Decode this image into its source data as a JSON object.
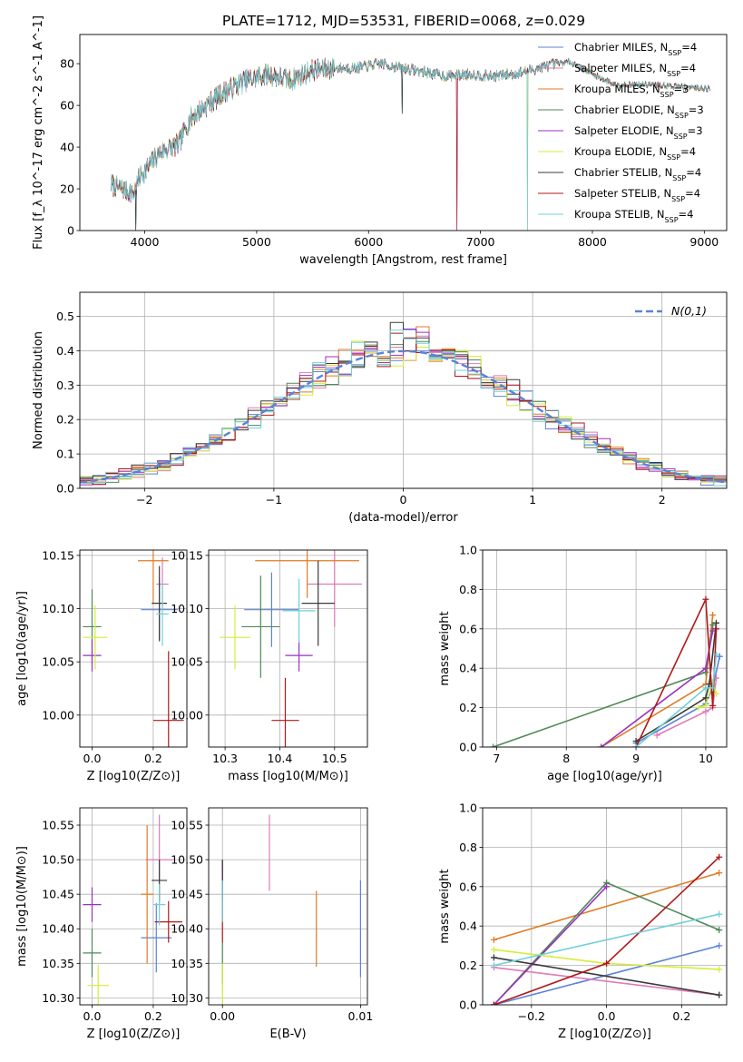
{
  "figure_title": "PLATE=1712, MJD=53531, FIBERID=0068, z=0.029",
  "models": [
    {
      "name": "Chabrier MILES, N$_{SSP}$=4",
      "lib": "Chabrier MILES, N",
      "n": "4",
      "color": "#5b83d6"
    },
    {
      "name": "Salpeter MILES, N$_{SSP}$=4",
      "lib": "Salpeter MILES, N",
      "n": "4",
      "color": "#e07ab8"
    },
    {
      "name": "Kroupa MILES, N$_{SSP}$=3",
      "lib": "Kroupa MILES, N",
      "n": "3",
      "color": "#e07b22"
    },
    {
      "name": "Chabrier ELODIE, N$_{SSP}$=3",
      "lib": "Chabrier ELODIE, N",
      "n": "3",
      "color": "#4e8a57"
    },
    {
      "name": "Salpeter ELODIE, N$_{SSP}$=3",
      "lib": "Salpeter ELODIE, N",
      "n": "3",
      "color": "#9b30c0"
    },
    {
      "name": "Kroupa ELODIE, N$_{SSP}$=4",
      "lib": "Kroupa ELODIE, N",
      "n": "4",
      "color": "#d6ec3a"
    },
    {
      "name": "Chabrier STELIB, N$_{SSP}$=4",
      "lib": "Chabrier STELIB, N",
      "n": "4",
      "color": "#3a3a3a"
    },
    {
      "name": "Salpeter STELIB, N$_{SSP}$=4",
      "lib": "Salpeter STELIB, N",
      "n": "4",
      "color": "#b01818"
    },
    {
      "name": "Kroupa STELIB, N$_{SSP}$=4",
      "lib": "Kroupa STELIB, N",
      "n": "4",
      "color": "#6fd0d8"
    }
  ],
  "nssp_sub": "SSP",
  "chart_data": [
    {
      "id": "spectrum",
      "type": "line",
      "xlabel": "wavelength [Angstrom, rest frame]",
      "ylabel": "Flux [f_λ 10^-17 erg cm^-2 s^-1 A^-1]",
      "xlim": [
        3420,
        9200
      ],
      "ylim": [
        0,
        94
      ],
      "xticks": [
        4000,
        5000,
        6000,
        7000,
        8000,
        9000
      ],
      "yticks": [
        0,
        20,
        40,
        60,
        80
      ],
      "grid": false,
      "legend": "top-right",
      "continuum_knots": [
        [
          3700,
          22
        ],
        [
          3800,
          20
        ],
        [
          3900,
          18
        ],
        [
          3960,
          26
        ],
        [
          4050,
          32
        ],
        [
          4150,
          38
        ],
        [
          4300,
          41
        ],
        [
          4400,
          53
        ],
        [
          4500,
          58
        ],
        [
          4700,
          66
        ],
        [
          4900,
          72
        ],
        [
          5100,
          75
        ],
        [
          5300,
          72
        ],
        [
          5500,
          77
        ],
        [
          5700,
          78
        ],
        [
          5900,
          78
        ],
        [
          6100,
          80
        ],
        [
          6300,
          78
        ],
        [
          6500,
          76
        ],
        [
          6700,
          74
        ],
        [
          6900,
          75
        ],
        [
          7100,
          74
        ],
        [
          7300,
          75
        ],
        [
          7600,
          79
        ],
        [
          7800,
          81
        ],
        [
          8000,
          75
        ],
        [
          8200,
          70
        ],
        [
          8500,
          70
        ],
        [
          8800,
          69
        ],
        [
          9050,
          68
        ]
      ],
      "dropouts": [
        {
          "x": 3920,
          "to": 0
        },
        {
          "x": 6790,
          "to": 0
        },
        {
          "x": 7420,
          "to": 0
        },
        {
          "x": 6300,
          "to": 56
        }
      ]
    },
    {
      "id": "residuals",
      "type": "histogram",
      "xlabel": "(data-model)/error",
      "ylabel": "Normed distribution",
      "xlim": [
        -2.5,
        2.5
      ],
      "ylim": [
        0,
        0.57
      ],
      "xticks": [
        -2,
        -1,
        0,
        1,
        2
      ],
      "yticks": [
        0.0,
        0.1,
        0.2,
        0.3,
        0.4,
        0.5
      ],
      "bin_width": 0.1,
      "grid": true,
      "legend": "top-right",
      "reference": {
        "name": "N(0,1)",
        "mean": 0,
        "sigma": 1,
        "color": "#5b83d6"
      }
    },
    {
      "id": "age_vs_Z",
      "type": "errorbar",
      "xlabel": "Z [log10(Z/Z⊙)]",
      "ylabel": "age  [log10(age/yr)]",
      "xlim": [
        -0.04,
        0.31
      ],
      "ylim": [
        9.97,
        10.155
      ],
      "xticks": [
        0.0,
        0.2
      ],
      "yticks": [
        10.0,
        10.05,
        10.1,
        10.15
      ],
      "grid": true,
      "points": [
        {
          "x": 0.22,
          "xerr": 0.06,
          "y": 10.099,
          "yerr": 0.03
        },
        {
          "x": 0.23,
          "xerr": 0.02,
          "y": 10.123,
          "yerr": 0.025
        },
        {
          "x": 0.2,
          "xerr": 0.05,
          "y": 10.145,
          "yerr": 0.04
        },
        {
          "x": 0.0,
          "xerr": 0.03,
          "y": 10.083,
          "yerr": 0.035
        },
        {
          "x": 0.0,
          "xerr": 0.03,
          "y": 10.056,
          "yerr": 0.015
        },
        {
          "x": 0.01,
          "xerr": 0.04,
          "y": 10.073,
          "yerr": 0.03
        },
        {
          "x": 0.22,
          "xerr": 0.025,
          "y": 10.105,
          "yerr": 0.035
        },
        {
          "x": 0.25,
          "xerr": 0.05,
          "y": 9.995,
          "yerr": 0.065
        },
        {
          "x": 0.23,
          "xerr": 0.02,
          "y": 10.095,
          "yerr": 0.03
        }
      ]
    },
    {
      "id": "age_vs_mass",
      "type": "errorbar",
      "xlabel": "mass [log10(M/M⊙)]",
      "ylabel": "",
      "xlim": [
        10.27,
        10.56
      ],
      "ylim": [
        9.97,
        10.155
      ],
      "xticks": [
        10.3,
        10.4,
        10.5
      ],
      "yticks": [
        10.0,
        10.05,
        10.1,
        10.15
      ],
      "grid": true,
      "points": [
        {
          "x": 10.385,
          "xerr": 0.05,
          "y": 10.099,
          "yerr": 0.035
        },
        {
          "x": 10.5,
          "xerr": 0.05,
          "y": 10.123,
          "yerr": 0.04
        },
        {
          "x": 10.45,
          "xerr": 0.095,
          "y": 10.145,
          "yerr": 0.035
        },
        {
          "x": 10.365,
          "xerr": 0.035,
          "y": 10.083,
          "yerr": 0.048
        },
        {
          "x": 10.435,
          "xerr": 0.025,
          "y": 10.056,
          "yerr": 0.015
        },
        {
          "x": 10.318,
          "xerr": 0.028,
          "y": 10.073,
          "yerr": 0.03
        },
        {
          "x": 10.47,
          "xerr": 0.03,
          "y": 10.105,
          "yerr": 0.04
        },
        {
          "x": 10.41,
          "xerr": 0.025,
          "y": 9.995,
          "yerr": 0.04
        },
        {
          "x": 10.435,
          "xerr": 0.03,
          "y": 10.098,
          "yerr": 0.03
        }
      ]
    },
    {
      "id": "massweight_vs_age",
      "type": "line",
      "xlabel": "age  [log10(age/yr)]",
      "ylabel": "mass weight",
      "xlim": [
        6.8,
        10.3
      ],
      "ylim": [
        0,
        1.0
      ],
      "xticks": [
        7,
        8,
        9,
        10
      ],
      "yticks": [
        0.0,
        0.2,
        0.4,
        0.6,
        0.8,
        1.0
      ],
      "grid": true,
      "series": [
        {
          "model": 0,
          "x": [
            9.0,
            10.0,
            10.1,
            10.2
          ],
          "y": [
            0.02,
            0.22,
            0.3,
            0.46
          ]
        },
        {
          "model": 1,
          "x": [
            9.3,
            10.0,
            10.1,
            10.15
          ],
          "y": [
            0.06,
            0.18,
            0.2,
            0.35
          ]
        },
        {
          "model": 2,
          "x": [
            8.5,
            10.0,
            10.1
          ],
          "y": [
            0.0,
            0.32,
            0.67
          ]
        },
        {
          "model": 3,
          "x": [
            6.95,
            10.0,
            10.1
          ],
          "y": [
            0.0,
            0.38,
            0.62
          ]
        },
        {
          "model": 4,
          "x": [
            8.5,
            10.0,
            10.1
          ],
          "y": [
            0.0,
            0.4,
            0.59
          ]
        },
        {
          "model": 5,
          "x": [
            9.9,
            10.0,
            10.1,
            10.15
          ],
          "y": [
            0.2,
            0.21,
            0.33,
            0.27
          ]
        },
        {
          "model": 6,
          "x": [
            9.0,
            10.0,
            10.05,
            10.15
          ],
          "y": [
            0.03,
            0.25,
            0.32,
            0.63
          ]
        },
        {
          "model": 7,
          "x": [
            9.0,
            10.0,
            10.1,
            10.15
          ],
          "y": [
            0.0,
            0.75,
            0.21,
            0.6
          ]
        },
        {
          "model": 8,
          "x": [
            9.0,
            10.0,
            10.1,
            10.15
          ],
          "y": [
            0.0,
            0.3,
            0.3,
            0.47
          ]
        }
      ]
    },
    {
      "id": "mass_vs_Z",
      "type": "errorbar",
      "xlabel": "Z [log10(Z/Z⊙)]",
      "ylabel": "mass [log10(M/M⊙)]",
      "xlim": [
        -0.04,
        0.31
      ],
      "ylim": [
        10.29,
        10.575
      ],
      "xticks": [
        0.0,
        0.2
      ],
      "yticks": [
        10.3,
        10.35,
        10.4,
        10.45,
        10.5,
        10.55
      ],
      "grid": true,
      "points": [
        {
          "x": 0.21,
          "xerr": 0.05,
          "y": 10.387,
          "yerr": 0.05
        },
        {
          "x": 0.22,
          "xerr": 0.045,
          "y": 10.5,
          "yerr": 0.065
        },
        {
          "x": 0.18,
          "xerr": 0.02,
          "y": 10.45,
          "yerr": 0.1
        },
        {
          "x": 0.0,
          "xerr": 0.03,
          "y": 10.365,
          "yerr": 0.035
        },
        {
          "x": 0.0,
          "xerr": 0.03,
          "y": 10.435,
          "yerr": 0.025
        },
        {
          "x": 0.02,
          "xerr": 0.035,
          "y": 10.318,
          "yerr": 0.03
        },
        {
          "x": 0.22,
          "xerr": 0.025,
          "y": 10.47,
          "yerr": 0.03
        },
        {
          "x": 0.25,
          "xerr": 0.045,
          "y": 10.41,
          "yerr": 0.03
        },
        {
          "x": 0.22,
          "xerr": 0.02,
          "y": 10.435,
          "yerr": 0.03
        }
      ]
    },
    {
      "id": "mass_vs_EBV",
      "type": "errorbar",
      "xlabel": "E(B-V)",
      "ylabel": "",
      "xlim": [
        -0.001,
        0.0105
      ],
      "ylim": [
        10.29,
        10.575
      ],
      "xticks": [
        0.0,
        0.01
      ],
      "yticks": [
        10.3,
        10.35,
        10.4,
        10.45,
        10.5,
        10.55
      ],
      "grid": true,
      "points": [
        {
          "x": 0.01,
          "xerr": 0,
          "y": 10.4,
          "yerr": 0.07
        },
        {
          "x": 0.0034,
          "xerr": 0,
          "y": 10.51,
          "yerr": 0.055
        },
        {
          "x": 0.0068,
          "xerr": 0,
          "y": 10.4,
          "yerr": 0.055
        },
        {
          "x": 0.0,
          "xerr": 0,
          "y": 10.35,
          "yerr": 0.03
        },
        {
          "x": 0.0,
          "xerr": 0,
          "y": 10.47,
          "yerr": 0.03
        },
        {
          "x": 0.0,
          "xerr": 0,
          "y": 10.32,
          "yerr": 0.03
        },
        {
          "x": 0.0,
          "xerr": 0,
          "y": 10.47,
          "yerr": 0.03
        },
        {
          "x": 0.0,
          "xerr": 0,
          "y": 10.41,
          "yerr": 0.03
        },
        {
          "x": 0.0,
          "xerr": 0,
          "y": 10.44,
          "yerr": 0.03
        }
      ]
    },
    {
      "id": "massweight_vs_Z",
      "type": "line",
      "xlabel": "Z [log10(Z/Z⊙)]",
      "ylabel": "mass weight",
      "xlim": [
        -0.33,
        0.32
      ],
      "ylim": [
        0,
        1.0
      ],
      "xticks": [
        -0.2,
        0.0,
        0.2
      ],
      "yticks": [
        0.0,
        0.2,
        0.4,
        0.6,
        0.8,
        1.0
      ],
      "grid": true,
      "series": [
        {
          "model": 0,
          "x": [
            -0.3,
            0.3
          ],
          "y": [
            0.0,
            0.3
          ]
        },
        {
          "model": 1,
          "x": [
            -0.3,
            0.3
          ],
          "y": [
            0.19,
            0.05
          ]
        },
        {
          "model": 2,
          "x": [
            -0.3,
            0.3
          ],
          "y": [
            0.33,
            0.67
          ]
        },
        {
          "model": 3,
          "x": [
            -0.3,
            0.0,
            0.3
          ],
          "y": [
            0.0,
            0.62,
            0.38
          ]
        },
        {
          "model": 4,
          "x": [
            -0.3,
            0.0
          ],
          "y": [
            0.0,
            0.6
          ]
        },
        {
          "model": 5,
          "x": [
            -0.3,
            0.0,
            0.3
          ],
          "y": [
            0.28,
            0.21,
            0.18
          ]
        },
        {
          "model": 6,
          "x": [
            -0.3,
            0.3
          ],
          "y": [
            0.24,
            0.05
          ]
        },
        {
          "model": 7,
          "x": [
            -0.3,
            0.0,
            0.3
          ],
          "y": [
            0.0,
            0.21,
            0.75
          ]
        },
        {
          "model": 8,
          "x": [
            -0.3,
            0.3
          ],
          "y": [
            0.2,
            0.46
          ]
        }
      ]
    }
  ]
}
